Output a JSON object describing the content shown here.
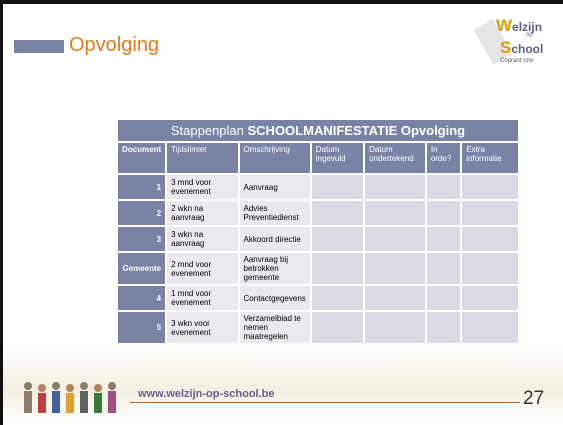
{
  "slide": {
    "title": "Opvolging",
    "page_number": "27",
    "url": "www.welzijn-op-school.be"
  },
  "logo": {
    "w": "W",
    "elzijn": "elzijn",
    "op": "op",
    "s": "S",
    "chool": "chool",
    "sub": "Coprant vzw"
  },
  "table": {
    "title_plain": "Stappenplan ",
    "title_bold": "SCHOOLMANIFESTATIE Opvolging",
    "columns": [
      "Document",
      "Tijdslimiet",
      "Omschrijving",
      "Datum ingevuld",
      "Datum ondertekend",
      "In orde?",
      "Extra informatie"
    ],
    "rows": [
      [
        "1",
        "3 mnd voor evenement",
        "Aanvraag"
      ],
      [
        "2",
        "2 wkn na aanvraag",
        "Advies Preventiedienst"
      ],
      [
        "3",
        "3 wkn na aanvraag",
        "Akkoord directie"
      ],
      [
        "Gemeente",
        "2 mnd voor evenement",
        "Aanvraag bij betrokken gemeente"
      ],
      [
        "4",
        "1 mnd voor evenement",
        "Contactgegevens"
      ],
      [
        "5",
        "3 wkn voor evenement",
        "Verzamelblad te nemen maatregelen"
      ]
    ]
  }
}
